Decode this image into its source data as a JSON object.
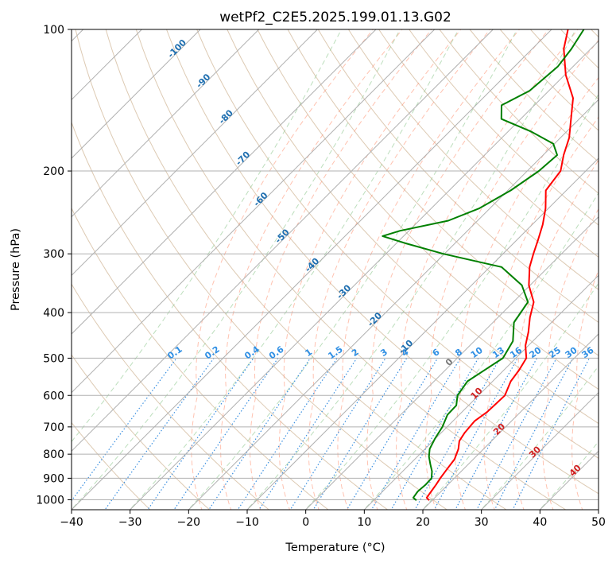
{
  "chart_data": {
    "type": "line",
    "diagram": "skew-T log-P",
    "title": "wetPf2_C2E5.2025.199.01.13.G02",
    "xlabel": "Temperature (°C)",
    "ylabel": "Pressure (hPa)",
    "xlim": [
      -40,
      50
    ],
    "ylim": [
      1050,
      100
    ],
    "yscale": "log",
    "x_ticks": [
      -40,
      -30,
      -20,
      -10,
      0,
      10,
      20,
      30,
      40,
      50
    ],
    "x_tick_labels": [
      "−40",
      "−30",
      "−20",
      "−10",
      "0",
      "10",
      "20",
      "30",
      "40",
      "50"
    ],
    "y_ticks": [
      1000,
      900,
      800,
      700,
      600,
      500,
      400,
      300,
      200,
      100
    ],
    "y_tick_labels": [
      "1000",
      "900",
      "800",
      "700",
      "600",
      "500",
      "400",
      "300",
      "200",
      "100"
    ],
    "grid": true,
    "series": [
      {
        "color": "#ff0000",
        "points": [
          [
            1003,
            19.5
          ],
          [
            990,
            18.6
          ],
          [
            960,
            18.3
          ],
          [
            930,
            18.0
          ],
          [
            900,
            17.6
          ],
          [
            860,
            17.2
          ],
          [
            820,
            16.8
          ],
          [
            780,
            15.7
          ],
          [
            750,
            14.5
          ],
          [
            720,
            14.0
          ],
          [
            680,
            13.7
          ],
          [
            650,
            14.3
          ],
          [
            600,
            14.5
          ],
          [
            560,
            13.1
          ],
          [
            530,
            12.6
          ],
          [
            500,
            11.8
          ],
          [
            470,
            9.5
          ],
          [
            440,
            7.7
          ],
          [
            410,
            5.5
          ],
          [
            380,
            3.5
          ],
          [
            350,
            -0.2
          ],
          [
            320,
            -3.2
          ],
          [
            300,
            -4.8
          ],
          [
            280,
            -6.4
          ],
          [
            260,
            -8.2
          ],
          [
            240,
            -10.5
          ],
          [
            220,
            -13.5
          ],
          [
            200,
            -14.3
          ],
          [
            185,
            -16.5
          ],
          [
            170,
            -18.5
          ],
          [
            155,
            -21.4
          ],
          [
            140,
            -24.6
          ],
          [
            125,
            -29.8
          ],
          [
            110,
            -34.6
          ],
          [
            100,
            -37.2
          ]
        ]
      },
      {
        "color": "#008000",
        "points": [
          [
            1003,
            17.3
          ],
          [
            990,
            16.3
          ],
          [
            960,
            16.0
          ],
          [
            930,
            16.2
          ],
          [
            900,
            16.1
          ],
          [
            870,
            15.0
          ],
          [
            840,
            13.5
          ],
          [
            810,
            12.0
          ],
          [
            780,
            10.8
          ],
          [
            740,
            9.9
          ],
          [
            700,
            9.2
          ],
          [
            660,
            8.0
          ],
          [
            630,
            7.9
          ],
          [
            600,
            6.4
          ],
          [
            560,
            5.7
          ],
          [
            530,
            6.7
          ],
          [
            500,
            7.8
          ],
          [
            460,
            6.6
          ],
          [
            420,
            3.6
          ],
          [
            380,
            2.5
          ],
          [
            350,
            -1.4
          ],
          [
            320,
            -8.0
          ],
          [
            300,
            -20.2
          ],
          [
            285,
            -28.4
          ],
          [
            275,
            -33.6
          ],
          [
            268,
            -31.5
          ],
          [
            255,
            -25.0
          ],
          [
            240,
            -21.8
          ],
          [
            220,
            -19.5
          ],
          [
            200,
            -18.0
          ],
          [
            185,
            -17.6
          ],
          [
            175,
            -20.2
          ],
          [
            165,
            -26.0
          ],
          [
            155,
            -33.3
          ],
          [
            145,
            -35.6
          ],
          [
            135,
            -33.3
          ],
          [
            120,
            -32.6
          ],
          [
            110,
            -33.3
          ],
          [
            100,
            -34.5
          ]
        ]
      }
    ],
    "dry_adiabat_labels": [
      "-100",
      "-90",
      "-80",
      "-70",
      "-60",
      "-50",
      "-40",
      "-30",
      "-20",
      "-10",
      "0",
      "10",
      "20",
      "30",
      "40"
    ],
    "mixing_ratio_labels": [
      "0.1",
      "0.2",
      "0.4",
      "0.6",
      "1",
      "1.5",
      "2",
      "3",
      "4",
      "6",
      "8",
      "10",
      "13",
      "16",
      "20",
      "25",
      "30",
      "36"
    ]
  }
}
